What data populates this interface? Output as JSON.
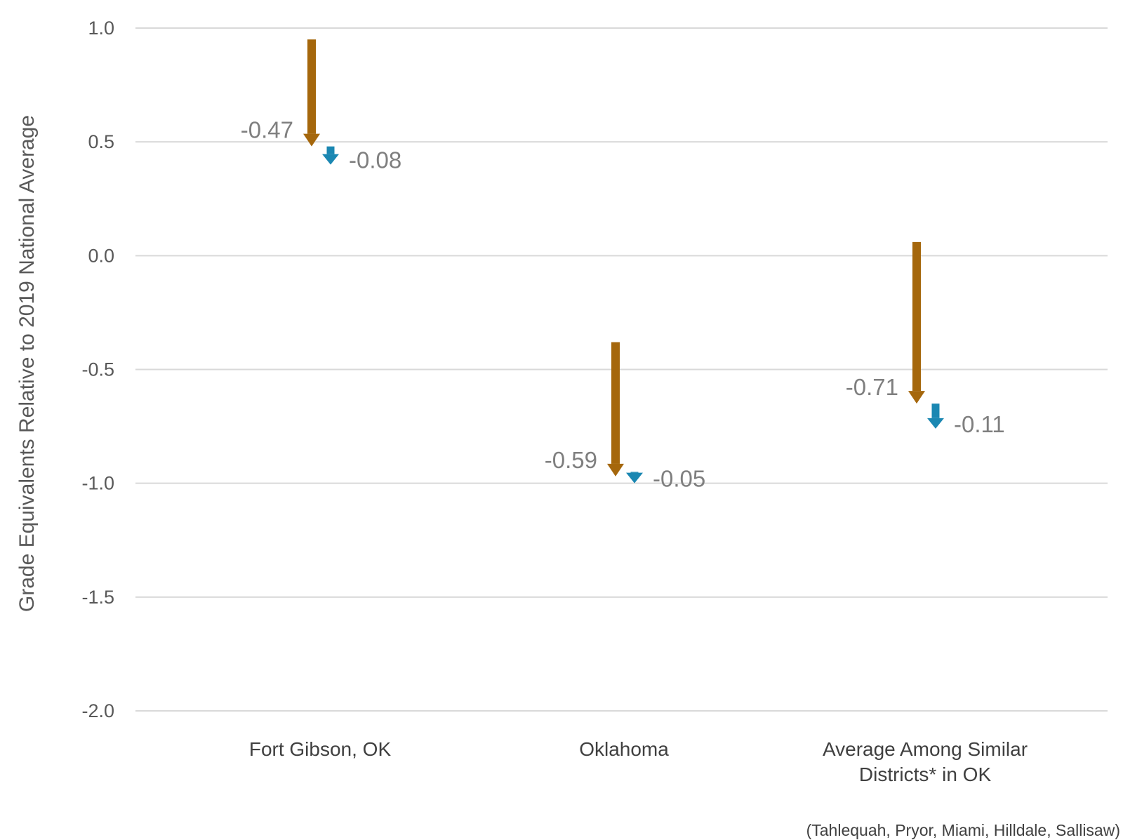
{
  "chart_data": {
    "type": "arrow",
    "ylabel": "Grade Equivalents Relative to 2019 National Average",
    "ylim": [
      -2.0,
      1.0
    ],
    "yticks": [
      "1.0",
      "0.5",
      "0.0",
      "-0.5",
      "-1.0",
      "-1.5",
      "-2.0"
    ],
    "ytick_values": [
      1.0,
      0.5,
      0.0,
      -0.5,
      -1.0,
      -1.5,
      -2.0
    ],
    "grid": true,
    "categories": [
      {
        "lines": [
          "Fort Gibson, OK"
        ]
      },
      {
        "lines": [
          "Oklahoma"
        ]
      },
      {
        "lines": [
          "Average Among Similar",
          "Districts* in OK"
        ]
      }
    ],
    "series": [
      {
        "color": "#a5670c",
        "arrows": [
          {
            "start": 0.95,
            "change": -0.47,
            "label": "-0.47"
          },
          {
            "start": -0.38,
            "change": -0.59,
            "label": "-0.59"
          },
          {
            "start": 0.06,
            "change": -0.71,
            "label": "-0.71"
          }
        ]
      },
      {
        "color": "#1a87b2",
        "arrows": [
          {
            "start": 0.48,
            "change": -0.08,
            "label": "-0.08"
          },
          {
            "start": -0.95,
            "change": -0.05,
            "label": "-0.05"
          },
          {
            "start": -0.65,
            "change": -0.11,
            "label": "-0.11"
          }
        ]
      }
    ],
    "footnote": "(Tahlequah, Pryor, Miami, Hilldale, Sallisaw)"
  }
}
